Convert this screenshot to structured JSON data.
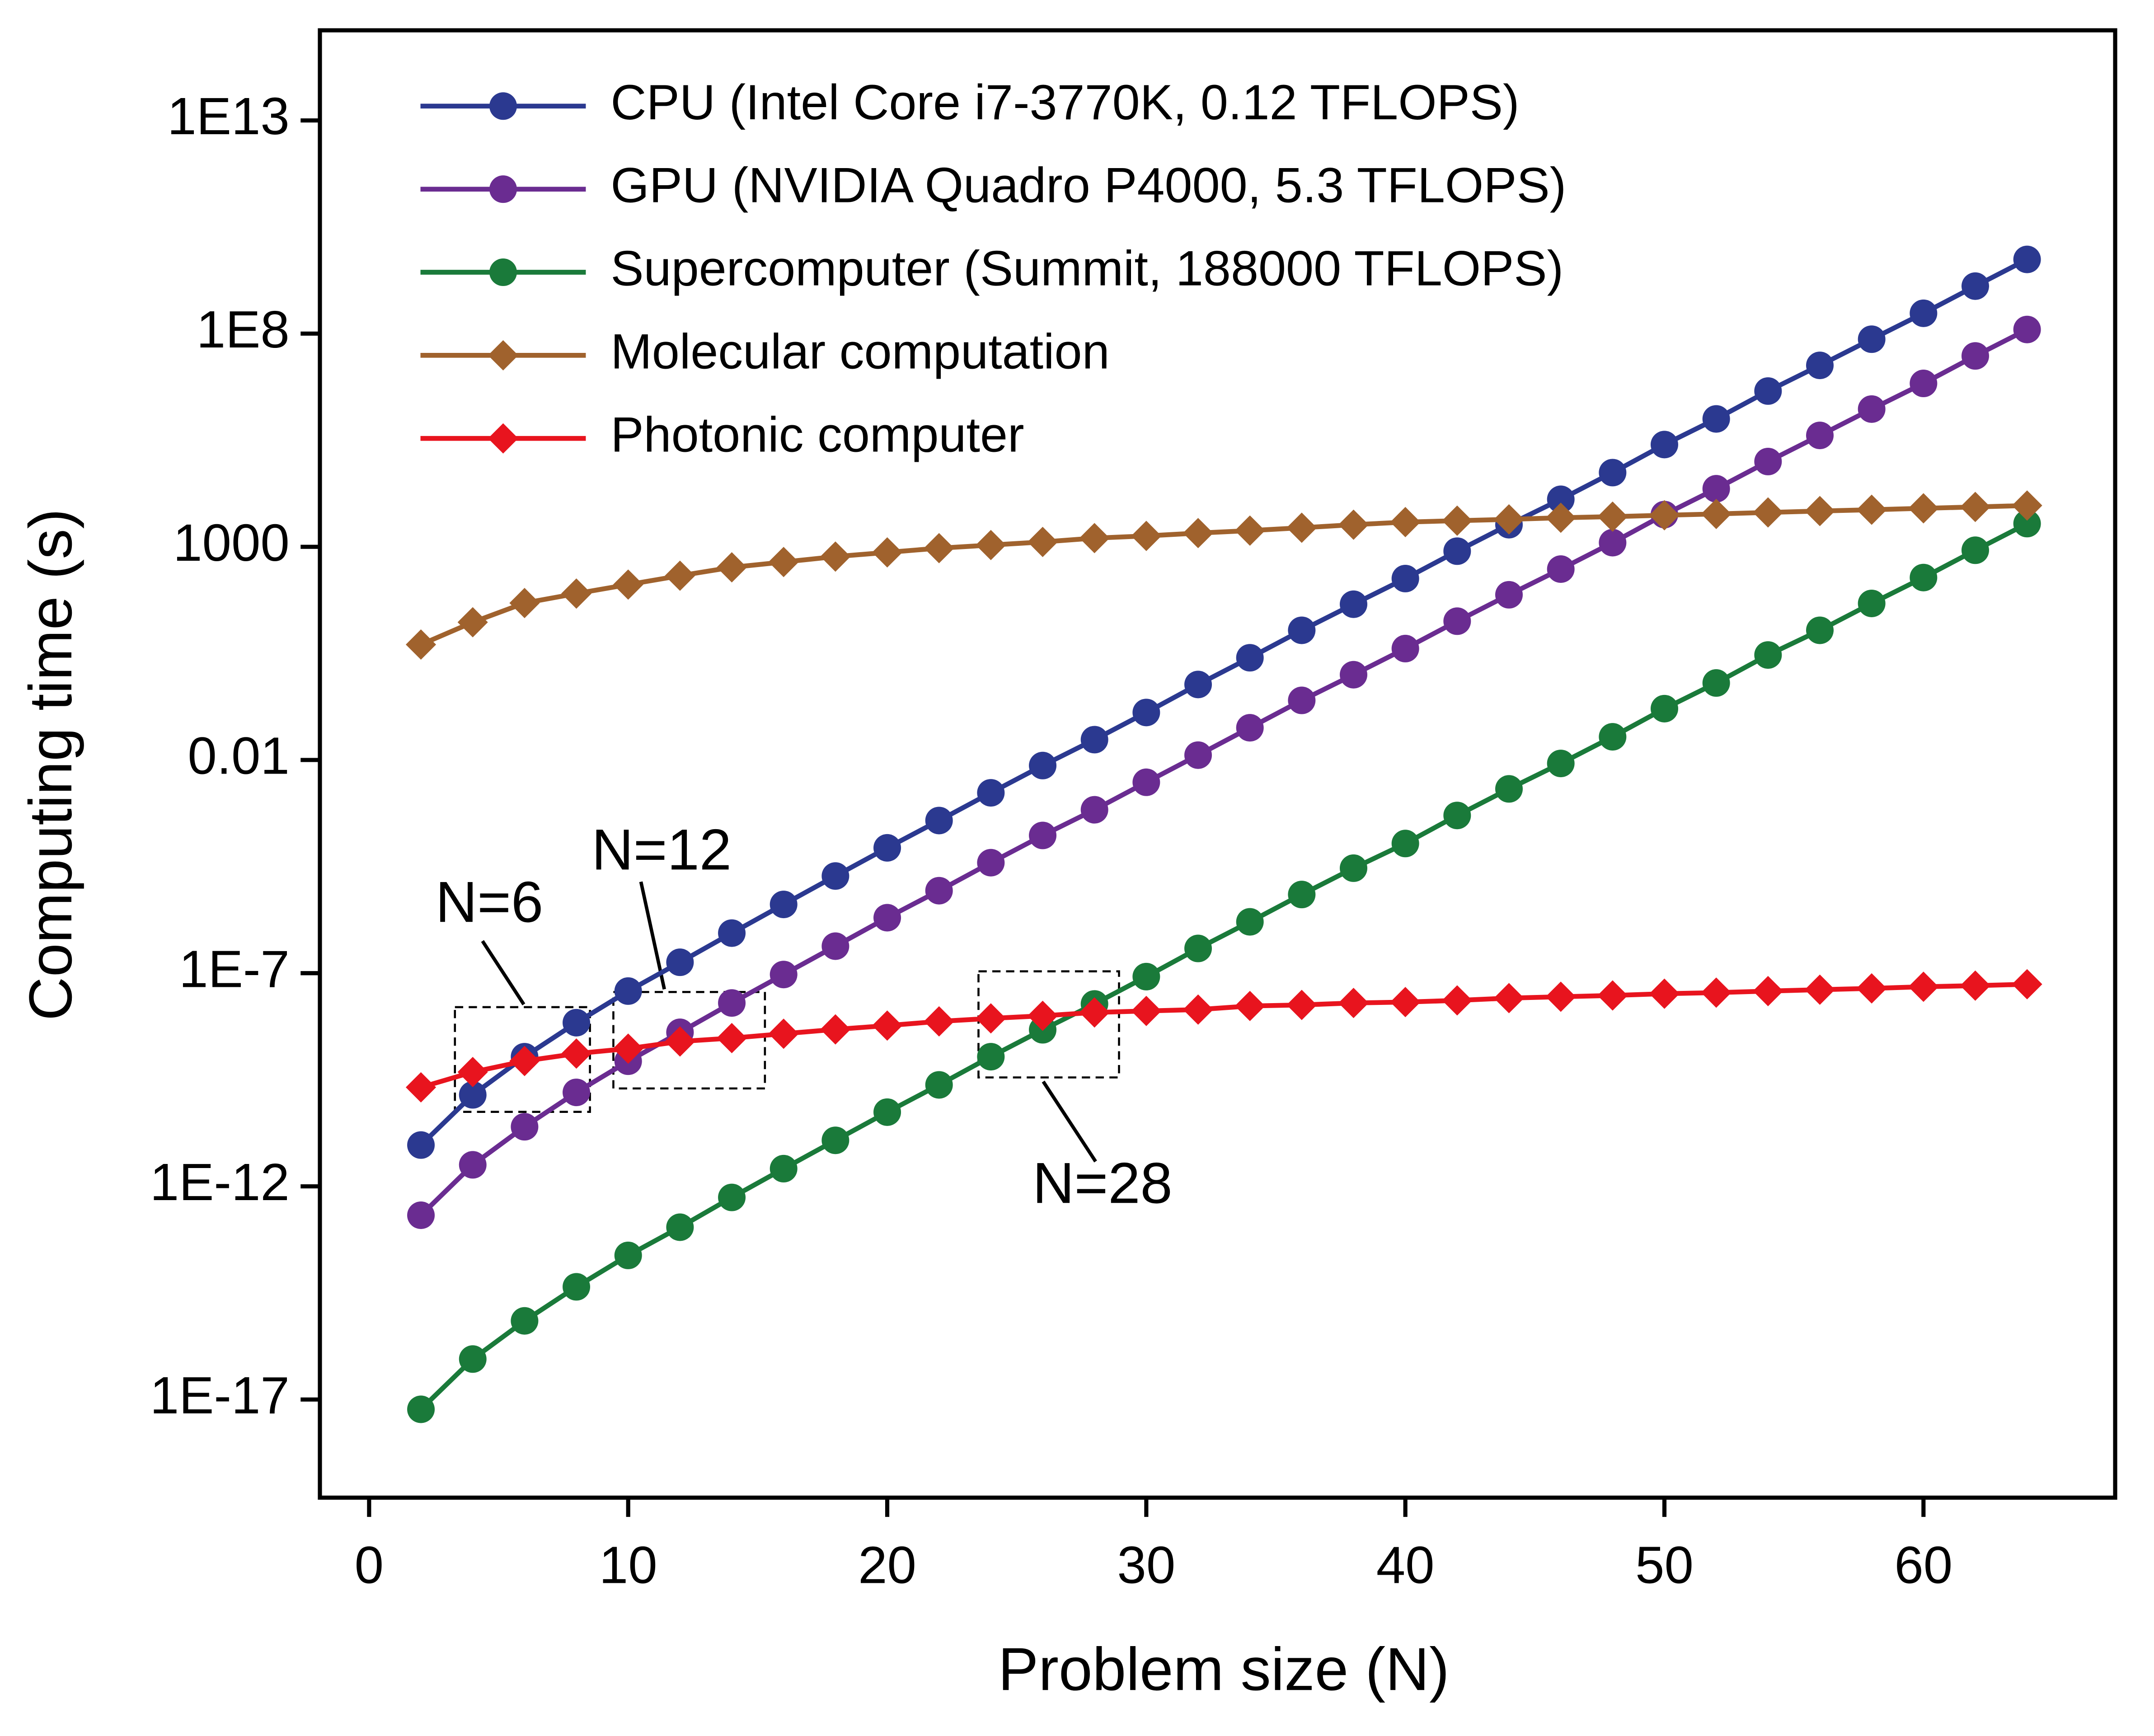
{
  "chart_data": {
    "type": "line",
    "xlabel": "Problem size (N)",
    "ylabel": "Computing time (s)",
    "log_y": true,
    "legend": "upper left",
    "xlim": [
      -1.9,
      67.4
    ],
    "xticks": [
      0,
      10,
      20,
      30,
      40,
      50,
      60
    ],
    "ylim": [
      5e-20,
      1300000000000000.0
    ],
    "yticks": [
      {
        "value": 10000000000000.0,
        "label": "1E13"
      },
      {
        "value": 100000000.0,
        "label": "1E8"
      },
      1000,
      0.01,
      {
        "value": 1e-07,
        "label": "1E-7"
      },
      {
        "value": 1e-12,
        "label": "1E-12"
      },
      {
        "value": 1e-17,
        "label": "1E-17"
      }
    ],
    "x": [
      2,
      4,
      6,
      8,
      10,
      12,
      14,
      16,
      18,
      20,
      22,
      24,
      26,
      28,
      30,
      32,
      34,
      36,
      38,
      40,
      42,
      44,
      46,
      48,
      50,
      52,
      54,
      56,
      58,
      60,
      62,
      64
    ],
    "series": [
      {
        "name": "CPU (Intel Core i7-3770K, 0.12 TFLOPS)",
        "color": "#2b3990",
        "marker": "circle",
        "values": [
          9.3e-12,
          1.4e-10,
          1.1e-09,
          6.9e-09,
          3.8e-08,
          1.8e-07,
          8.7e-07,
          4.1e-06,
          1.9e-05,
          8.7e-05,
          0.00038,
          0.0017,
          0.0074,
          0.03,
          0.13,
          0.59,
          2.5,
          11,
          45,
          180,
          790,
          3300,
          13000,
          55000,
          250000.0,
          1000000.0,
          4500000.0,
          18000000.0,
          74000000.0,
          300000000.0,
          1300000000.0,
          5500000000.0
        ]
      },
      {
        "name": "GPU (NVIDIA Quadro P4000, 5.3 TFLOPS)",
        "color": "#6a2c91",
        "marker": "circle",
        "values": [
          2.1e-13,
          3.2e-12,
          2.5e-11,
          1.6e-10,
          8.6e-10,
          4.1e-09,
          2e-08,
          9.3e-08,
          4.3e-07,
          2e-06,
          8.6e-06,
          3.9e-05,
          0.00017,
          0.00068,
          0.003,
          0.013,
          0.057,
          0.25,
          1.0,
          4.1,
          18,
          75,
          300,
          1250,
          5700,
          23000,
          100000.0,
          410000.0,
          1700000.0,
          6800000.0,
          30000000.0,
          125000000.0
        ]
      },
      {
        "name": "Supercomputer (Summit, 188000 TFLOPS)",
        "color": "#1a7a3a",
        "marker": "circle",
        "values": [
          5.9e-18,
          8.9e-17,
          7e-16,
          4.4e-15,
          2.4e-14,
          1.1e-13,
          5.5e-13,
          2.6e-12,
          1.2e-11,
          5.5e-11,
          2.4e-10,
          1.1e-09,
          4.7e-09,
          1.9e-08,
          8.3e-08,
          3.8e-07,
          1.6e-06,
          7e-06,
          2.9e-05,
          0.00011,
          0.0005,
          0.0021,
          0.0083,
          0.035,
          0.16,
          0.64,
          2.9,
          11,
          47,
          190,
          830,
          3500
        ]
      },
      {
        "name": "Molecular computation",
        "color": "#a0622d",
        "marker": "diamond",
        "values": [
          5.1,
          17,
          48,
          80,
          130,
          210,
          330,
          440,
          590,
          740,
          930,
          1100,
          1300,
          1600,
          1800,
          2100,
          2400,
          2800,
          3300,
          3800,
          4100,
          4400,
          4800,
          5100,
          5500,
          5900,
          6400,
          6900,
          7400,
          8000,
          8600,
          9300
        ]
      },
      {
        "name": "Photonic computer",
        "color": "#e8141e",
        "marker": "diamond",
        "values": [
          2.1e-10,
          4.8e-10,
          8.7e-10,
          1.3e-09,
          1.7e-09,
          2.5e-09,
          3e-09,
          3.8e-09,
          4.8e-09,
          5.9e-09,
          7.4e-09,
          8.7e-09,
          1e-08,
          1.2e-08,
          1.3e-08,
          1.4e-08,
          1.7e-08,
          1.8e-08,
          2e-08,
          2.1e-08,
          2.3e-08,
          2.6e-08,
          2.8e-08,
          3e-08,
          3.3e-08,
          3.5e-08,
          3.8e-08,
          4.1e-08,
          4.4e-08,
          4.8e-08,
          5.1e-08,
          5.5e-08
        ]
      }
    ],
    "annotations": [
      "N=6",
      "N=12",
      "N=28"
    ]
  }
}
